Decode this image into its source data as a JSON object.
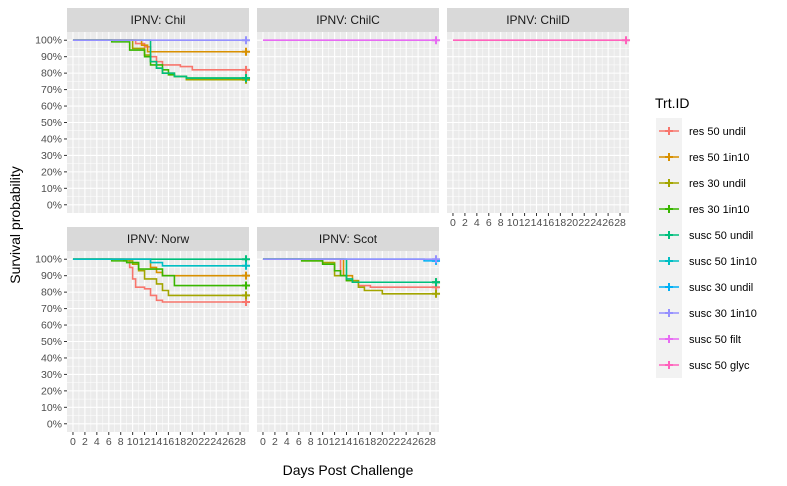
{
  "chart_data": {
    "type": "line",
    "chart_style": "faceted step survival curves",
    "xlabel": "Days Post Challenge",
    "ylabel": "Survival probability",
    "x_ticks": [
      "0",
      "2",
      "4",
      "6",
      "8",
      "10",
      "12",
      "14",
      "16",
      "18",
      "20",
      "22",
      "24",
      "26",
      "28"
    ],
    "y_ticks": [
      "0%",
      "10%",
      "20%",
      "30%",
      "40%",
      "50%",
      "60%",
      "70%",
      "80%",
      "90%",
      "100%"
    ],
    "xlim": [
      -1,
      29.5
    ],
    "ylim": [
      -0.05,
      1.05
    ],
    "grid": true,
    "legend_position": "right",
    "legend": {
      "title": "Trt.ID",
      "entries": [
        {
          "label": "res 50 undil",
          "color": "#F8766D"
        },
        {
          "label": "res 50 1in10",
          "color": "#D89000"
        },
        {
          "label": "res 30 undil",
          "color": "#A3A500"
        },
        {
          "label": "res 30 1in10",
          "color": "#39B600"
        },
        {
          "label": "susc 50 undil",
          "color": "#00BF7D"
        },
        {
          "label": "susc 50 1in10",
          "color": "#00BFC4"
        },
        {
          "label": "susc 30 undil",
          "color": "#00B0F6"
        },
        {
          "label": "susc 30 1in10",
          "color": "#9590FF"
        },
        {
          "label": "susc 50 filt",
          "color": "#E76BF3"
        },
        {
          "label": "susc 50 glyc",
          "color": "#FF62BC"
        }
      ]
    },
    "panels": [
      {
        "title": "IPNV: Chil",
        "show_x_ticks": false,
        "series": [
          {
            "name": "res 50 undil",
            "color": "#F8766D",
            "points": [
              [
                0,
                1
              ],
              [
                10,
                1
              ],
              [
                10.5,
                0.98
              ],
              [
                12,
                0.96
              ],
              [
                13,
                0.9
              ],
              [
                14,
                0.87
              ],
              [
                15,
                0.85
              ],
              [
                17,
                0.85
              ],
              [
                18,
                0.84
              ],
              [
                20,
                0.82
              ],
              [
                26,
                0.82
              ],
              [
                29,
                0.82
              ]
            ]
          },
          {
            "name": "res 50 1in10",
            "color": "#D89000",
            "points": [
              [
                0,
                1
              ],
              [
                11,
                1
              ],
              [
                11.5,
                0.97
              ],
              [
                12.5,
                0.93
              ],
              [
                29,
                0.93
              ]
            ]
          },
          {
            "name": "res 30 undil",
            "color": "#A3A500",
            "points": [
              [
                0,
                1
              ],
              [
                8,
                1
              ],
              [
                10,
                0.95
              ],
              [
                12,
                0.91
              ],
              [
                13,
                0.87
              ],
              [
                14,
                0.83
              ],
              [
                15,
                0.8
              ],
              [
                17,
                0.78
              ],
              [
                19,
                0.76
              ],
              [
                29,
                0.76
              ]
            ]
          },
          {
            "name": "res 30 1in10",
            "color": "#39B600",
            "points": [
              [
                0,
                1
              ],
              [
                6,
                1
              ],
              [
                6.5,
                0.99
              ],
              [
                9,
                0.99
              ],
              [
                9.5,
                0.94
              ],
              [
                12,
                0.9
              ],
              [
                13,
                0.85
              ],
              [
                15,
                0.82
              ],
              [
                16,
                0.79
              ],
              [
                17,
                0.78
              ],
              [
                19,
                0.77
              ],
              [
                29,
                0.77
              ]
            ]
          },
          {
            "name": "susc 50 undil",
            "color": "#00BF7D",
            "points": [
              [
                0,
                1
              ],
              [
                12,
                1
              ],
              [
                13,
                0.87
              ],
              [
                14,
                0.83
              ],
              [
                15,
                0.8
              ],
              [
                17,
                0.78
              ],
              [
                19,
                0.77
              ],
              [
                29,
                0.77
              ]
            ]
          },
          {
            "name": "susc 30 1in10",
            "color": "#9590FF",
            "points": [
              [
                0,
                1
              ],
              [
                29,
                1
              ]
            ]
          }
        ]
      },
      {
        "title": "IPNV: ChilC",
        "show_x_ticks": false,
        "series": [
          {
            "name": "susc 50 filt",
            "color": "#E76BF3",
            "points": [
              [
                0,
                1
              ],
              [
                29,
                1
              ]
            ]
          }
        ]
      },
      {
        "title": "IPNV: ChilD",
        "show_x_ticks": true,
        "series": [
          {
            "name": "susc 50 glyc",
            "color": "#FF62BC",
            "points": [
              [
                0,
                1
              ],
              [
                29,
                1
              ]
            ]
          }
        ]
      },
      {
        "title": "IPNV: Norw",
        "show_x_ticks": true,
        "series": [
          {
            "name": "res 50 undil",
            "color": "#F8766D",
            "points": [
              [
                0,
                1
              ],
              [
                9,
                1
              ],
              [
                9.5,
                0.95
              ],
              [
                10,
                0.88
              ],
              [
                10.5,
                0.83
              ],
              [
                12,
                0.82
              ],
              [
                13,
                0.78
              ],
              [
                14,
                0.75
              ],
              [
                15,
                0.74
              ],
              [
                29,
                0.74
              ]
            ]
          },
          {
            "name": "res 50 1in10",
            "color": "#D89000",
            "points": [
              [
                0,
                1
              ],
              [
                12,
                1
              ],
              [
                13,
                0.95
              ],
              [
                14,
                0.92
              ],
              [
                15,
                0.9
              ],
              [
                29,
                0.9
              ]
            ]
          },
          {
            "name": "res 30 undil",
            "color": "#A3A500",
            "points": [
              [
                0,
                1
              ],
              [
                8,
                1
              ],
              [
                8.5,
                0.99
              ],
              [
                10,
                0.97
              ],
              [
                11,
                0.93
              ],
              [
                12,
                0.88
              ],
              [
                14,
                0.85
              ],
              [
                15,
                0.81
              ],
              [
                16,
                0.78
              ],
              [
                29,
                0.78
              ]
            ]
          },
          {
            "name": "res 30 1in10",
            "color": "#39B600",
            "points": [
              [
                0,
                1
              ],
              [
                6,
                1
              ],
              [
                6.5,
                0.99
              ],
              [
                9,
                0.98
              ],
              [
                11,
                0.94
              ],
              [
                15,
                0.9
              ],
              [
                17,
                0.84
              ],
              [
                29,
                0.84
              ]
            ]
          },
          {
            "name": "susc 50 undil",
            "color": "#00BF7D",
            "points": [
              [
                0,
                1
              ],
              [
                29,
                1
              ]
            ]
          },
          {
            "name": "susc 50 1in10",
            "color": "#00BFC4",
            "points": [
              [
                0,
                1
              ],
              [
                12,
                1
              ],
              [
                13,
                0.98
              ],
              [
                15,
                0.96
              ],
              [
                29,
                0.96
              ]
            ]
          }
        ]
      },
      {
        "title": "IPNV: Scot",
        "show_x_ticks": true,
        "series": [
          {
            "name": "res 50 undil",
            "color": "#F8766D",
            "points": [
              [
                0,
                1
              ],
              [
                12,
                1
              ],
              [
                13,
                0.9
              ],
              [
                14,
                0.87
              ],
              [
                16,
                0.84
              ],
              [
                18,
                0.83
              ],
              [
                29,
                0.83
              ]
            ]
          },
          {
            "name": "res 50 1in10",
            "color": "#D89000",
            "points": [
              [
                0,
                1
              ],
              [
                13,
                1
              ],
              [
                13.5,
                0.9
              ],
              [
                15,
                0.86
              ],
              [
                29,
                0.86
              ]
            ]
          },
          {
            "name": "res 30 undil",
            "color": "#A3A500",
            "points": [
              [
                0,
                1
              ],
              [
                6,
                1
              ],
              [
                6.5,
                0.99
              ],
              [
                10,
                0.98
              ],
              [
                12,
                0.9
              ],
              [
                14,
                0.87
              ],
              [
                16,
                0.83
              ],
              [
                17,
                0.81
              ],
              [
                20,
                0.79
              ],
              [
                29,
                0.79
              ]
            ]
          },
          {
            "name": "res 30 1in10",
            "color": "#39B600",
            "points": [
              [
                0,
                1
              ],
              [
                6,
                1
              ],
              [
                6.5,
                0.99
              ],
              [
                10,
                0.97
              ],
              [
                12,
                0.93
              ],
              [
                13,
                0.9
              ],
              [
                14,
                0.87
              ],
              [
                15,
                0.86
              ],
              [
                29,
                0.86
              ]
            ]
          },
          {
            "name": "susc 50 undil",
            "color": "#00BF7D",
            "points": [
              [
                0,
                1
              ],
              [
                13,
                1
              ],
              [
                14,
                0.88
              ],
              [
                15,
                0.86
              ],
              [
                29,
                0.86
              ]
            ]
          },
          {
            "name": "susc 30 undil",
            "color": "#00B0F6",
            "points": [
              [
                0,
                1
              ],
              [
                26,
                1
              ],
              [
                27,
                0.99
              ],
              [
                29,
                0.99
              ]
            ]
          },
          {
            "name": "susc 30 1in10",
            "color": "#9590FF",
            "points": [
              [
                0,
                1
              ],
              [
                29,
                1
              ]
            ]
          }
        ]
      }
    ]
  }
}
